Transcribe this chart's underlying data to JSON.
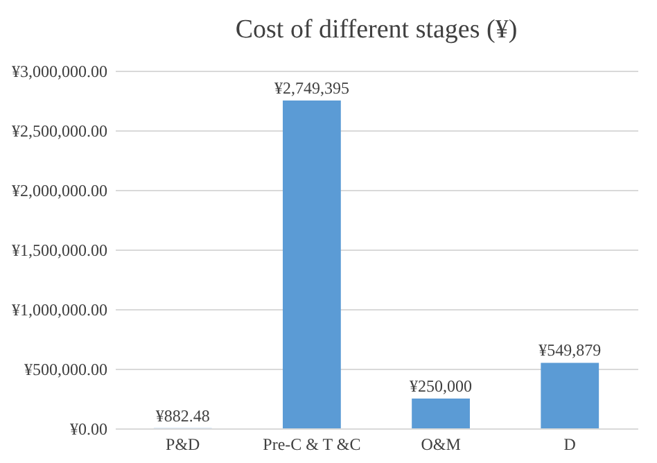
{
  "chart_data": {
    "type": "bar",
    "title": "Cost of different stages (¥)",
    "categories": [
      "P&D",
      "Pre-C & T &C",
      "O&M",
      "D"
    ],
    "values": [
      882.48,
      2749395,
      250000,
      549879
    ],
    "value_labels": [
      "¥882.48",
      "¥2,749,395",
      "¥250,000",
      "¥549,879"
    ],
    "color": "#5b9bd5",
    "ylim": [
      0,
      3000000
    ],
    "yticks": [
      {
        "value": 0,
        "label": "¥0.00"
      },
      {
        "value": 500000,
        "label": "¥500,000.00"
      },
      {
        "value": 1000000,
        "label": "¥1,000,000.00"
      },
      {
        "value": 1500000,
        "label": "¥1,500,000.00"
      },
      {
        "value": 2000000,
        "label": "¥2,000,000.00"
      },
      {
        "value": 2500000,
        "label": "¥2,500,000.00"
      },
      {
        "value": 3000000,
        "label": "¥3,000,000.00"
      }
    ],
    "grid": "y"
  }
}
